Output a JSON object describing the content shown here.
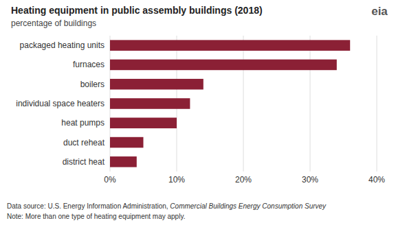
{
  "chart_data": {
    "type": "bar",
    "orientation": "horizontal",
    "title": "Heating equipment in public assembly buildings (2018)",
    "subtitle": "percentage of buildings",
    "categories": [
      "district heat",
      "duct reheat",
      "heat pumps",
      "individual space heaters",
      "boilers",
      "furnaces",
      "packaged heating units"
    ],
    "values": [
      4,
      5,
      10,
      12,
      14,
      34,
      36
    ],
    "color": "#8B2035",
    "xlim": [
      0,
      40
    ],
    "xticks": [
      {
        "value": 0,
        "label": "0%"
      },
      {
        "value": 10,
        "label": "10%"
      },
      {
        "value": 20,
        "label": "20%"
      },
      {
        "value": 30,
        "label": "30%"
      },
      {
        "value": 40,
        "label": "40%"
      }
    ],
    "grid": true,
    "annotations": [
      "Data source: U.S. Energy Information Administration, ",
      "Commercial Buildings Energy Consumption Survey",
      "Note: More than one type of heating equipment may apply.",
      "eia"
    ]
  }
}
